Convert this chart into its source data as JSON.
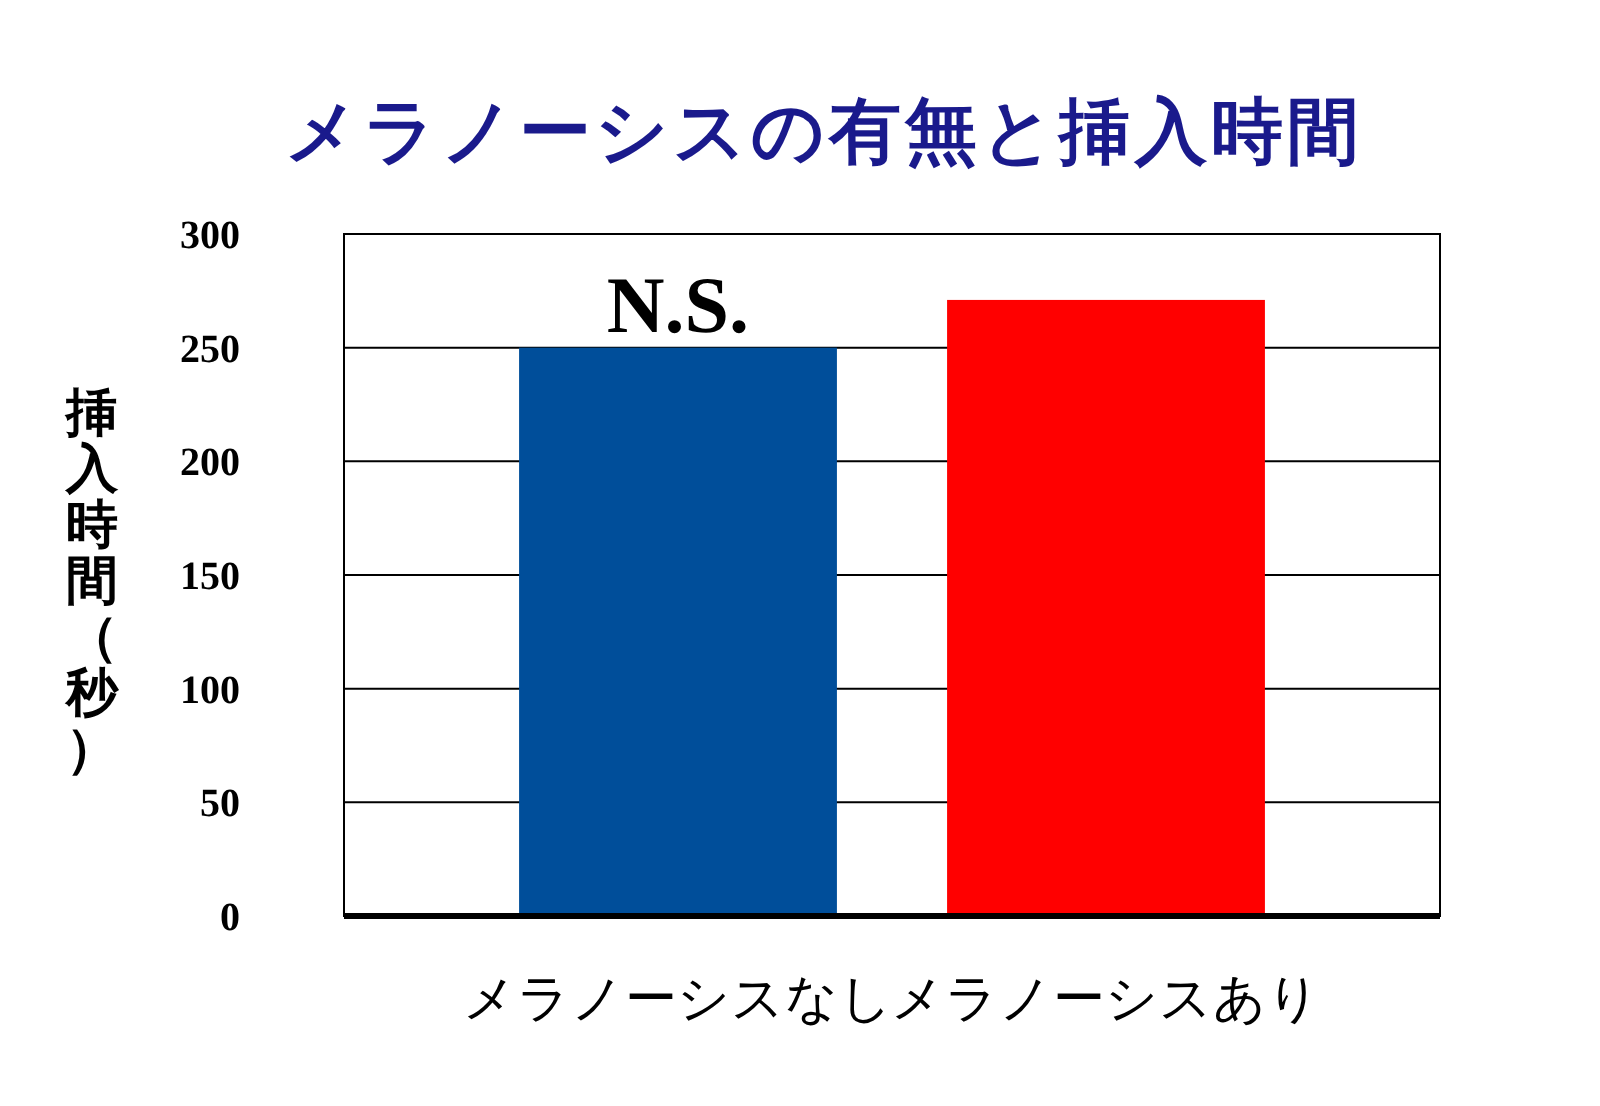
{
  "chart_data": {
    "type": "bar",
    "title": "メラノーシスの有無と挿入時間",
    "ylabel": "挿入時間（秒）",
    "categories": [
      "メラノーシスなし",
      "メラノーシスあり"
    ],
    "values": [
      250,
      271
    ],
    "colors": [
      "#004e9a",
      "#ff0000"
    ],
    "ylim": [
      0,
      300
    ],
    "yticks": [
      0,
      50,
      100,
      150,
      200,
      250,
      300
    ],
    "grid": "y",
    "annotations": [
      "N.S."
    ]
  }
}
